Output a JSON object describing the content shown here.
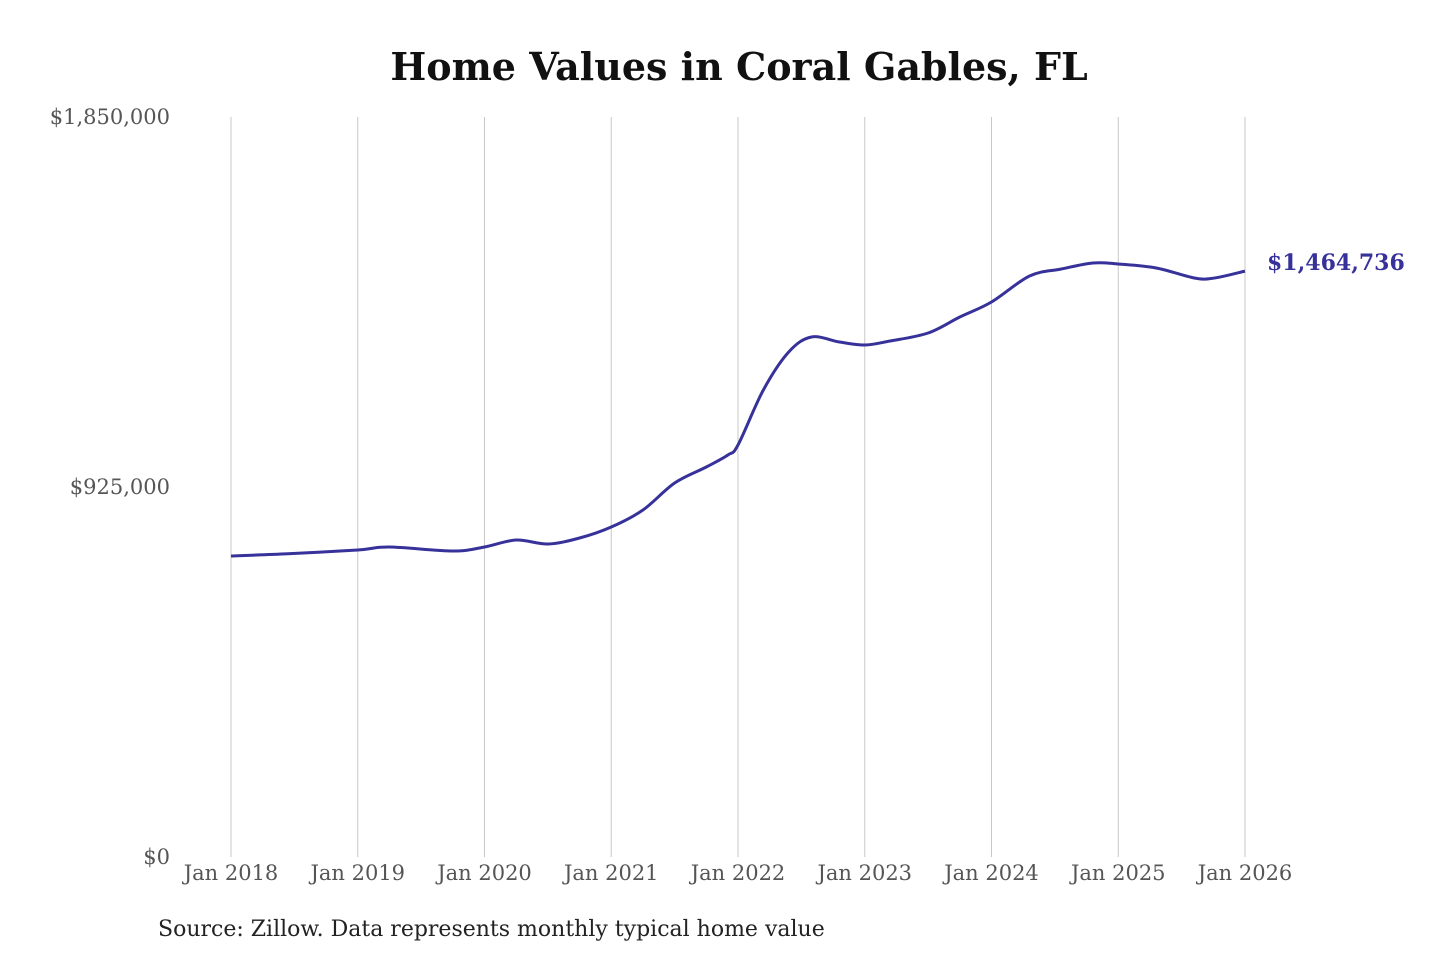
{
  "chart_data": {
    "type": "line",
    "title": "Home Values in Coral Gables, FL",
    "source": "Source: Zillow. Data represents monthly typical home value",
    "xlabel": "",
    "ylabel": "",
    "ylim": [
      0,
      1850000
    ],
    "xlim": [
      2018.0,
      2026.0
    ],
    "grid": "vertical",
    "y_ticks": [
      {
        "value": 0,
        "label": "$0"
      },
      {
        "value": 925000,
        "label": "$925,000"
      },
      {
        "value": 1850000,
        "label": "$1,850,000"
      }
    ],
    "x_ticks": [
      {
        "value": 2018,
        "label": "Jan 2018"
      },
      {
        "value": 2019,
        "label": "Jan 2019"
      },
      {
        "value": 2020,
        "label": "Jan 2020"
      },
      {
        "value": 2021,
        "label": "Jan 2021"
      },
      {
        "value": 2022,
        "label": "Jan 2022"
      },
      {
        "value": 2023,
        "label": "Jan 2023"
      },
      {
        "value": 2024,
        "label": "Jan 2024"
      },
      {
        "value": 2025,
        "label": "Jan 2025"
      },
      {
        "value": 2026,
        "label": "Jan 2026"
      }
    ],
    "series": [
      {
        "name": "Typical home value",
        "color": "#37319a",
        "x": [
          2018.0,
          2018.45,
          2019.0,
          2019.25,
          2019.75,
          2020.0,
          2020.25,
          2020.5,
          2020.75,
          2021.0,
          2021.25,
          2021.5,
          2021.75,
          2021.92,
          2022.0,
          2022.2,
          2022.4,
          2022.58,
          2022.8,
          2023.0,
          2023.2,
          2023.5,
          2023.75,
          2024.0,
          2024.3,
          2024.55,
          2024.8,
          2025.0,
          2025.3,
          2025.6,
          2025.75,
          2026.0
        ],
        "y": [
          752500,
          758000,
          767500,
          775000,
          765000,
          775000,
          792500,
          782500,
          797500,
          825000,
          867500,
          935000,
          975000,
          1005000,
          1030000,
          1167500,
          1262500,
          1300000,
          1287500,
          1280000,
          1290000,
          1310000,
          1350000,
          1387500,
          1452500,
          1470000,
          1485000,
          1482500,
          1472500,
          1447500,
          1447000,
          1464736
        ]
      }
    ],
    "end_label": "$1,464,736"
  }
}
